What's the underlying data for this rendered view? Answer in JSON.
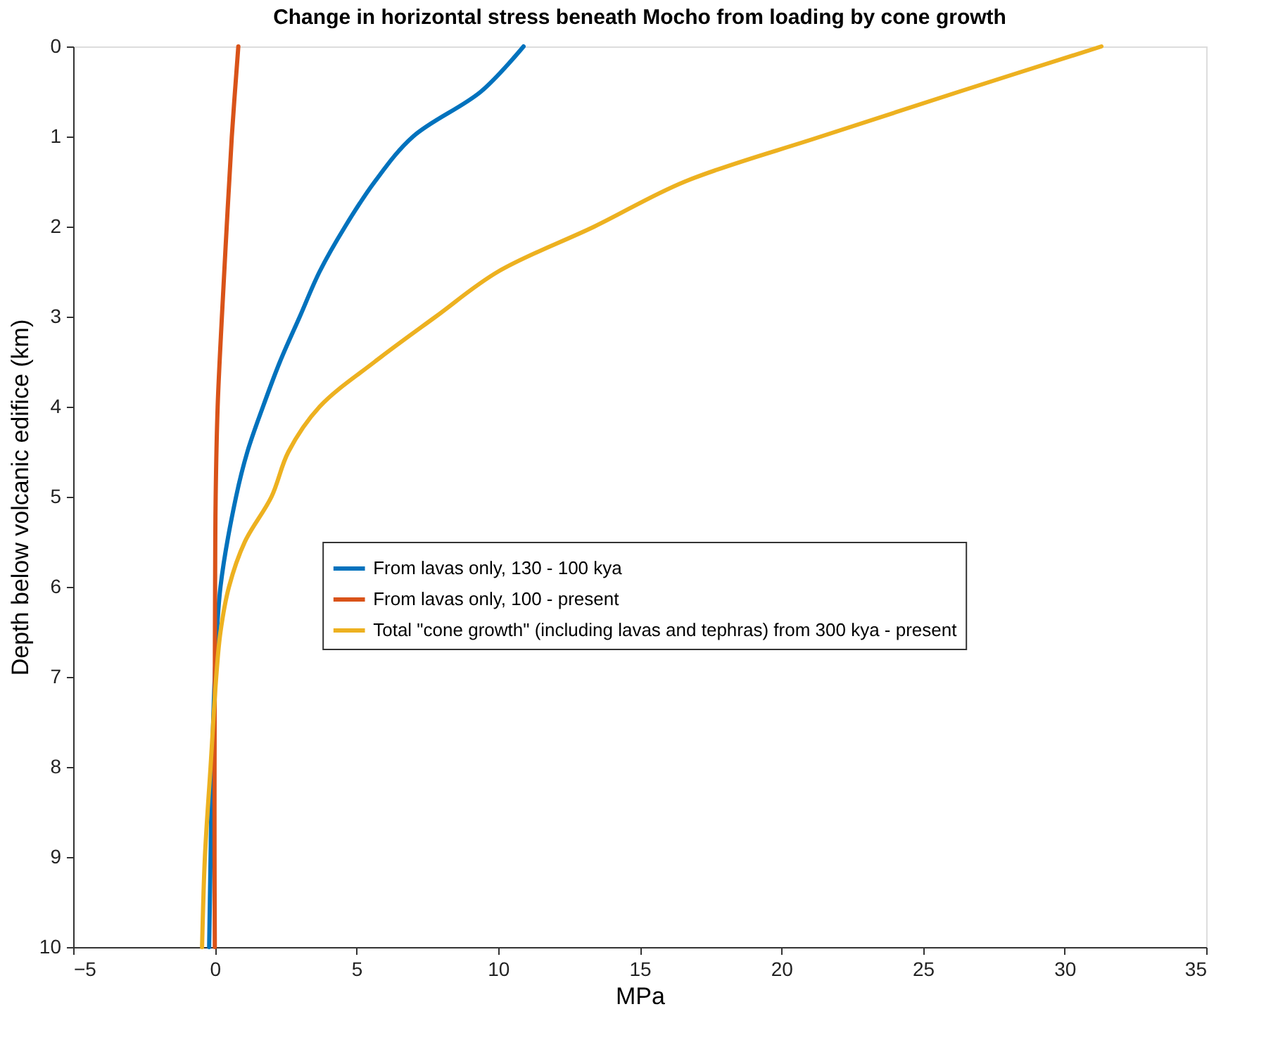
{
  "chart_data": {
    "type": "line",
    "title": "Change in horizontal stress beneath Mocho from loading by cone growth",
    "xlabel": "MPa",
    "ylabel": "Depth below volcanic edifice (km)",
    "xlim": [
      -5,
      35
    ],
    "xticks": [
      -5,
      0,
      5,
      10,
      15,
      20,
      25,
      30,
      35
    ],
    "ylim": [
      10,
      0
    ],
    "yticks": [
      0,
      1,
      2,
      3,
      4,
      5,
      6,
      7,
      8,
      9,
      10
    ],
    "grid": false,
    "legend": "right",
    "line_style": "solid",
    "marker": "none",
    "series": [
      {
        "name": "From lavas only, 130 - 100 kya",
        "color": "#0072bd",
        "x": [
          10.9,
          9.4,
          7.0,
          5.65,
          4.6,
          3.7,
          3.0,
          2.3,
          1.7,
          1.15,
          0.75,
          0.2,
          0.0,
          -0.1,
          -0.15,
          -0.2
        ],
        "values": [
          0,
          0.5,
          1,
          1.5,
          2,
          2.5,
          3,
          3.5,
          4,
          4.5,
          5,
          6,
          7,
          8,
          9,
          10
        ]
      },
      {
        "name": "From lavas only, 100 - present",
        "color": "#d95319",
        "x": [
          0.83,
          0.6,
          0.42,
          0.25,
          0.1,
          0.03,
          0.01,
          0.0,
          -0.01,
          -0.01,
          0.0
        ],
        "values": [
          0,
          1,
          2,
          3,
          4,
          5,
          6,
          7,
          8,
          9,
          10
        ]
      },
      {
        "name": "Total \"cone growth\" (including lavas and tephras) from 300 kya - present",
        "color": "#edb120",
        "x": [
          31.3,
          26.3,
          21.4,
          16.6,
          13.4,
          10.0,
          7.8,
          5.65,
          3.7,
          2.6,
          2.0,
          1.06,
          0.5,
          0.2,
          0.05,
          -0.15,
          -0.35,
          -0.45
        ],
        "values": [
          0,
          0.5,
          1,
          1.5,
          2,
          2.5,
          3,
          3.5,
          4,
          4.5,
          5,
          5.5,
          6,
          6.5,
          7,
          8,
          9,
          10
        ]
      }
    ]
  }
}
